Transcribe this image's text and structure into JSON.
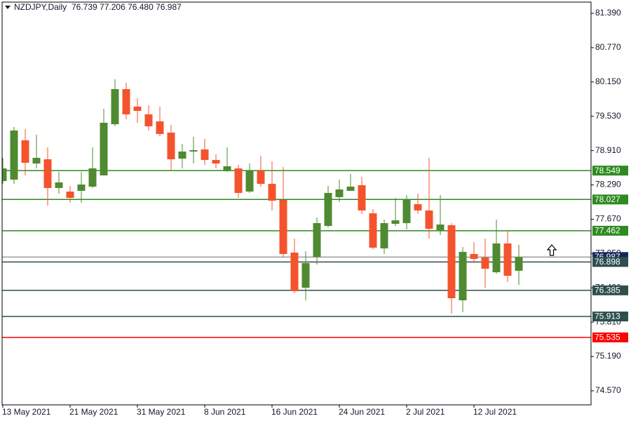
{
  "chart_data": {
    "type": "candlestick",
    "title": "NZDJPY,Daily",
    "subtitle": "76.739 77.206 76.480 76.987",
    "categories": [
      "13 May 2021",
      null,
      null,
      null,
      null,
      null,
      "21 May 2021",
      null,
      null,
      null,
      null,
      null,
      "31 May 2021",
      null,
      null,
      null,
      null,
      null,
      "8 Jun 2021",
      null,
      null,
      null,
      null,
      null,
      "16 Jun 2021",
      null,
      null,
      null,
      null,
      null,
      "24 Jun 2021",
      null,
      null,
      null,
      null,
      null,
      "2 Jul 2021",
      null,
      null,
      null,
      null,
      null,
      "12 Jul 2021",
      null,
      null,
      null,
      null
    ],
    "open": [
      78.36,
      78.386,
      79.096,
      78.677,
      78.753,
      78.234,
      78.17,
      78.183,
      78.259,
      78.462,
      79.387,
      80.021,
      79.704,
      79.565,
      79.438,
      79.235,
      78.766,
      78.893,
      78.931,
      78.741,
      78.551,
      78.589,
      78.17,
      78.551,
      78.31,
      78.018,
      77.067,
      76.433,
      76.991,
      77.549,
      78.069,
      78.183,
      78.284,
      77.777,
      77.143,
      77.587,
      77.6,
      77.942,
      77.828,
      77.473,
      77.562,
      76.205,
      77.042,
      76.979,
      76.712,
      77.232,
      76.739
    ],
    "high": [
      78.779,
      79.337,
      79.298,
      79.197,
      78.969,
      78.525,
      78.272,
      78.525,
      78.969,
      79.666,
      80.198,
      80.135,
      79.856,
      79.729,
      79.704,
      79.375,
      79.032,
      79.159,
      79.121,
      78.842,
      78.969,
      78.652,
      78.677,
      78.817,
      78.715,
      78.614,
      77.321,
      77.093,
      77.701,
      78.272,
      78.386,
      78.487,
      78.436,
      77.853,
      77.663,
      78.056,
      78.107,
      78.132,
      78.779,
      78.107,
      77.6,
      77.169,
      77.257,
      77.321,
      77.663,
      77.448,
      77.206
    ],
    "low": [
      78.31,
      78.31,
      78.462,
      78.589,
      77.917,
      78.132,
      77.967,
      77.967,
      78.234,
      78.462,
      79.349,
      79.476,
      79.413,
      79.273,
      79.172,
      78.551,
      78.589,
      78.677,
      78.652,
      78.589,
      78.525,
      78.056,
      78.145,
      78.259,
      77.828,
      76.979,
      76.332,
      76.205,
      76.852,
      77.524,
      77.98,
      78.183,
      77.765,
      77.131,
      77.042,
      77.549,
      77.486,
      77.765,
      77.321,
      77.384,
      75.964,
      75.99,
      76.877,
      76.433,
      76.687,
      76.535,
      76.48
    ],
    "close": [
      78.589,
      79.273,
      78.69,
      78.779,
      78.234,
      78.335,
      78.056,
      78.297,
      78.589,
      79.413,
      80.021,
      79.565,
      79.628,
      79.349,
      79.21,
      78.753,
      78.893,
      78.918,
      78.741,
      78.677,
      78.627,
      78.145,
      78.551,
      78.31,
      78.005,
      77.042,
      76.37,
      76.877,
      77.6,
      78.145,
      78.208,
      78.259,
      77.828,
      77.156,
      77.6,
      77.65,
      78.018,
      77.828,
      77.498,
      77.574,
      76.243,
      77.08,
      76.953,
      76.776,
      77.232,
      76.649,
      76.987
    ],
    "up_color": "#4f8a30",
    "down_color": "#f4532d",
    "ylim": [
      74.316,
      81.593
    ],
    "yticks": [
      {
        "value": 81.39,
        "label": "81.390"
      },
      {
        "value": 80.77,
        "label": "80.770"
      },
      {
        "value": 80.15,
        "label": "80.150"
      },
      {
        "value": 79.53,
        "label": "79.530"
      },
      {
        "value": 78.91,
        "label": "78.910"
      },
      {
        "value": 78.29,
        "label": "78.290"
      },
      {
        "value": 77.67,
        "label": "77.670"
      },
      {
        "value": 77.05,
        "label": "77.050"
      },
      {
        "value": 76.43,
        "label": "76.430"
      },
      {
        "value": 75.81,
        "label": "75.810"
      },
      {
        "value": 75.19,
        "label": "75.190"
      },
      {
        "value": 74.57,
        "label": "74.570"
      }
    ],
    "levels": [
      {
        "value": 78.549,
        "color": "#2f8a22"
      },
      {
        "value": 78.027,
        "color": "#2f8a22"
      },
      {
        "value": 77.462,
        "color": "#2f8a22"
      },
      {
        "value": 76.987,
        "color": "#9a9a9a"
      },
      {
        "value": 76.898,
        "color": "#2f4f4f"
      },
      {
        "value": 76.385,
        "color": "#2f4f4f"
      },
      {
        "value": 75.913,
        "color": "#2f4f4f"
      },
      {
        "value": 75.535,
        "color": "#ff0000"
      }
    ]
  }
}
